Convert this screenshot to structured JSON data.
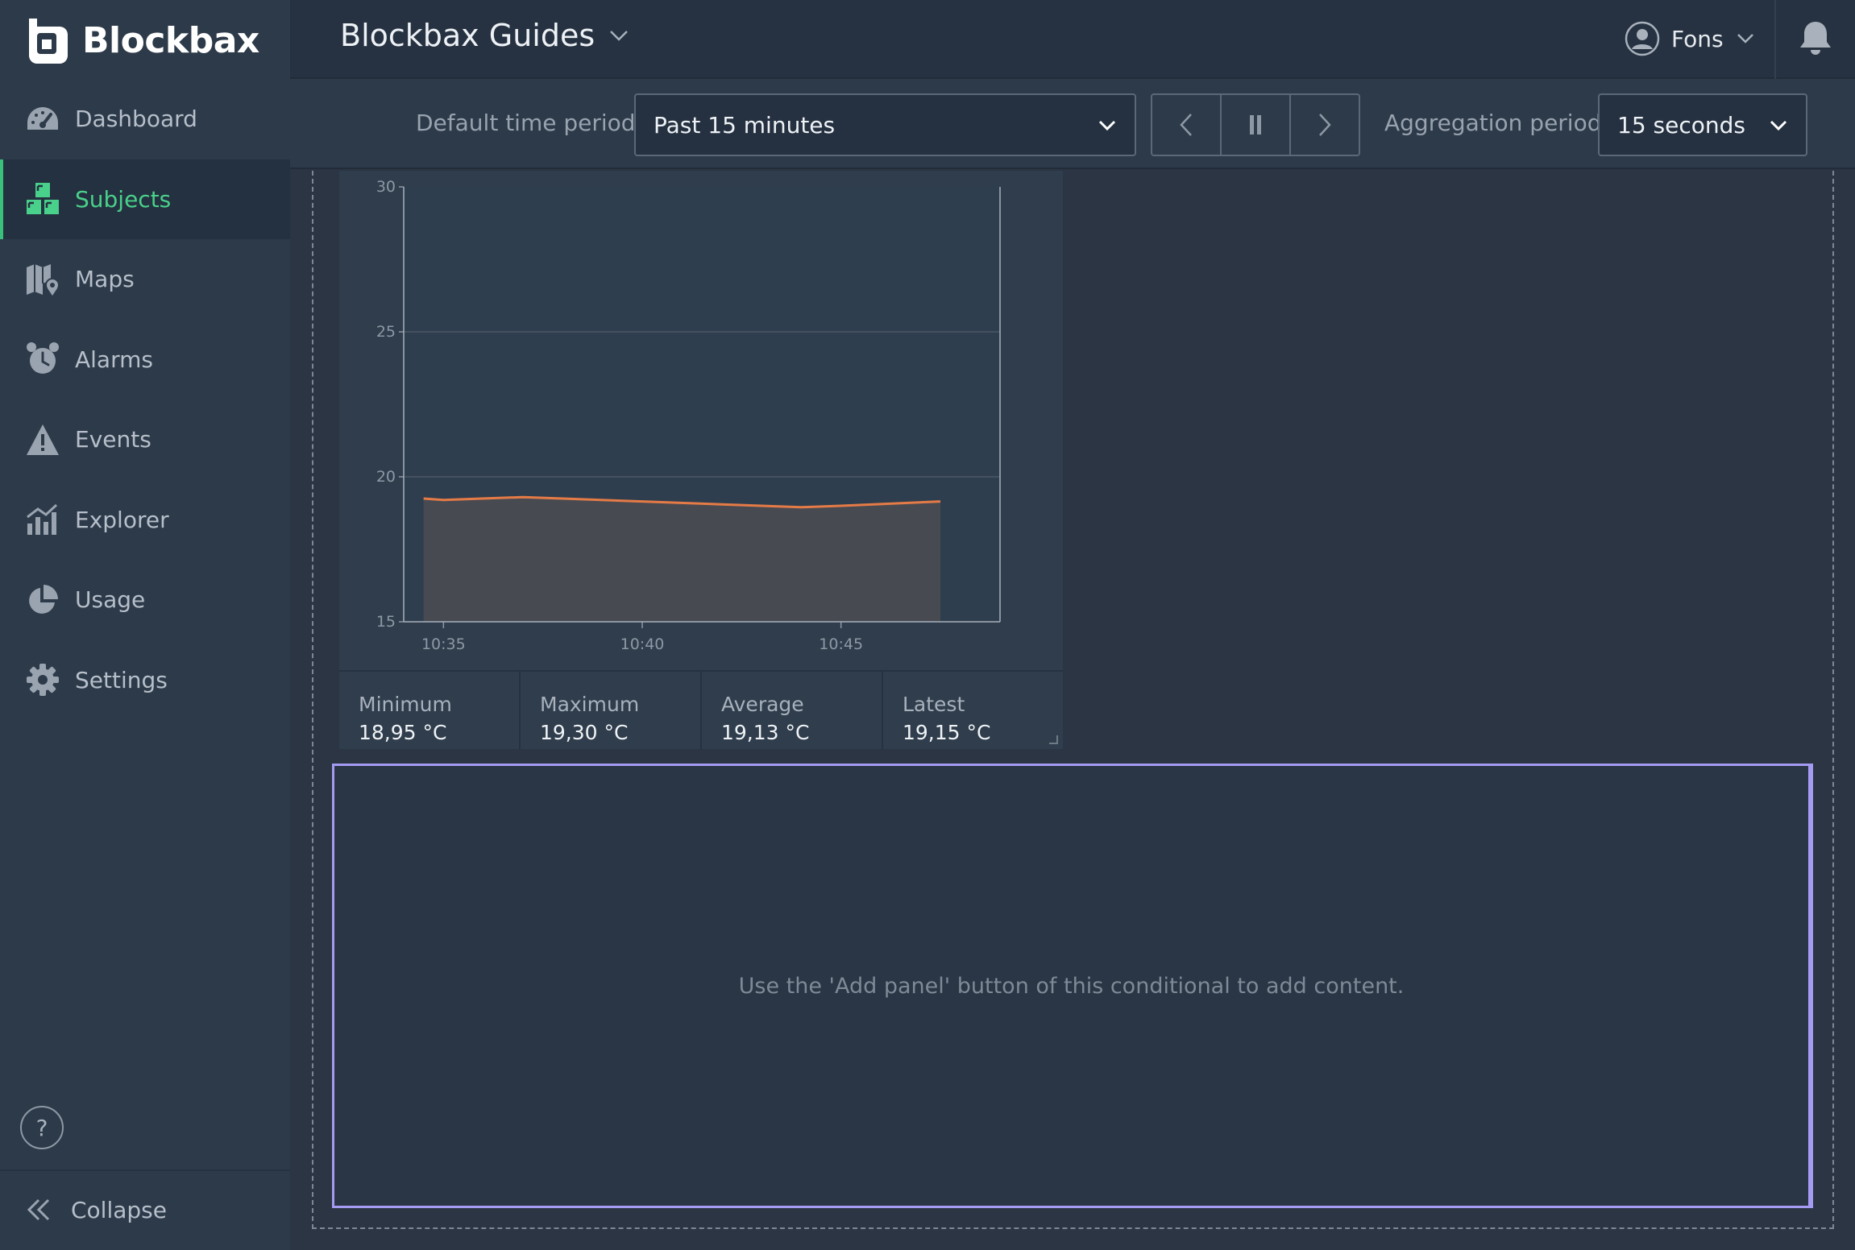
{
  "brand": {
    "name": "Blockbax",
    "accent": "#39c07a"
  },
  "sidebar": {
    "items": [
      {
        "label": "Dashboard",
        "icon": "dashboard-gauge-icon",
        "active": false
      },
      {
        "label": "Subjects",
        "icon": "subjects-blocks-icon",
        "active": true
      },
      {
        "label": "Maps",
        "icon": "map-pin-icon",
        "active": false
      },
      {
        "label": "Alarms",
        "icon": "alarm-clock-icon",
        "active": false
      },
      {
        "label": "Events",
        "icon": "warning-triangle-icon",
        "active": false
      },
      {
        "label": "Explorer",
        "icon": "bar-chart-trend-icon",
        "active": false
      },
      {
        "label": "Usage",
        "icon": "pie-chart-icon",
        "active": false
      },
      {
        "label": "Settings",
        "icon": "gear-icon",
        "active": false
      }
    ],
    "help_label": "?",
    "collapse_label": "Collapse"
  },
  "header": {
    "project_title": "Blockbax Guides",
    "user_name": "Fons"
  },
  "toolbar": {
    "time_period_label": "Default time period:",
    "time_period_value": "Past 15 minutes",
    "aggregation_label": "Aggregation period:",
    "aggregation_value": "15 seconds"
  },
  "chart_data": {
    "type": "area",
    "title": "",
    "xlabel": "",
    "ylabel": "",
    "ylim": [
      15,
      30
    ],
    "yticks": [
      15,
      20,
      25,
      30
    ],
    "xticks": [
      "10:35",
      "10:40",
      "10:45"
    ],
    "x_minutes": [
      34.5,
      35,
      37,
      38,
      40,
      42,
      43,
      44,
      45,
      47.5
    ],
    "xlim": [
      34,
      49
    ],
    "values": [
      19.25,
      19.2,
      19.3,
      19.25,
      19.15,
      19.05,
      19.0,
      18.95,
      19.0,
      19.15
    ],
    "line_color": "#e57b46",
    "fill_color": "#484a52",
    "grid": true
  },
  "stats": [
    {
      "label": "Minimum",
      "value": "18,95 °C"
    },
    {
      "label": "Maximum",
      "value": "19,30 °C"
    },
    {
      "label": "Average",
      "value": "19,13 °C"
    },
    {
      "label": "Latest",
      "value": "19,15 °C"
    }
  ],
  "conditional": {
    "message": "Use the 'Add panel' button of this conditional to add content."
  }
}
